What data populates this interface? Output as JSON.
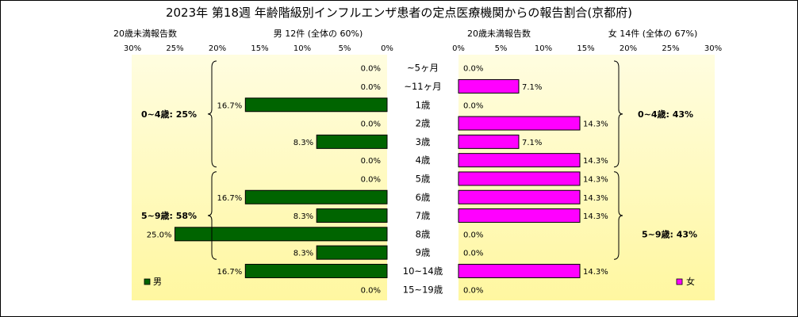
{
  "title": "2023年 第18週 年齢階級別インフルエンザ患者の定点医療機関からの報告割合(京都府)",
  "male_header": {
    "under20": "20歳未満報告数",
    "summary": "男 12件 (全体の 60%)"
  },
  "female_header": {
    "under20": "20歳未満報告数",
    "summary": "女 14件 (全体の 67%)"
  },
  "colors": {
    "male": "#006400",
    "female": "#ff00ff",
    "plot_bg_top": "#fffde0",
    "plot_bg_bottom": "#fff7a0"
  },
  "chart_data": {
    "type": "bar",
    "orientation": "horizontal-back-to-back",
    "title": "2023年 第18週 年齢階級別インフルエンザ患者の定点医療機関からの報告割合(京都府)",
    "categories": [
      "~5ヶ月",
      "~11ヶ月",
      "1歳",
      "2歳",
      "3歳",
      "4歳",
      "5歳",
      "6歳",
      "7歳",
      "8歳",
      "9歳",
      "10~14歳",
      "15~19歳"
    ],
    "xlim": [
      0,
      30
    ],
    "ticks": [
      "0%",
      "5%",
      "10%",
      "15%",
      "20%",
      "25%",
      "30%"
    ],
    "series": [
      {
        "name": "男",
        "values": [
          0,
          0,
          16.7,
          0,
          8.3,
          0,
          0,
          16.7,
          8.3,
          25.0,
          8.3,
          16.7,
          0
        ],
        "labels": [
          "0.0%",
          "0.0%",
          "16.7%",
          "0.0%",
          "8.3%",
          "0.0%",
          "0.0%",
          "16.7%",
          "8.3%",
          "25.0%",
          "8.3%",
          "16.7%",
          "0.0%"
        ]
      },
      {
        "name": "女",
        "values": [
          0,
          7.1,
          0,
          14.3,
          7.1,
          14.3,
          14.3,
          14.3,
          14.3,
          0,
          0,
          14.3,
          0
        ],
        "labels": [
          "0.0%",
          "7.1%",
          "0.0%",
          "14.3%",
          "7.1%",
          "14.3%",
          "14.3%",
          "14.3%",
          "14.3%",
          "0.0%",
          "0.0%",
          "14.3%",
          "0.0%"
        ]
      }
    ],
    "group_labels": {
      "male": [
        "0~4歳: 25%",
        "5~9歳: 58%"
      ],
      "female": [
        "0~4歳: 43%",
        "5~9歳: 43%"
      ]
    },
    "grid": false
  }
}
